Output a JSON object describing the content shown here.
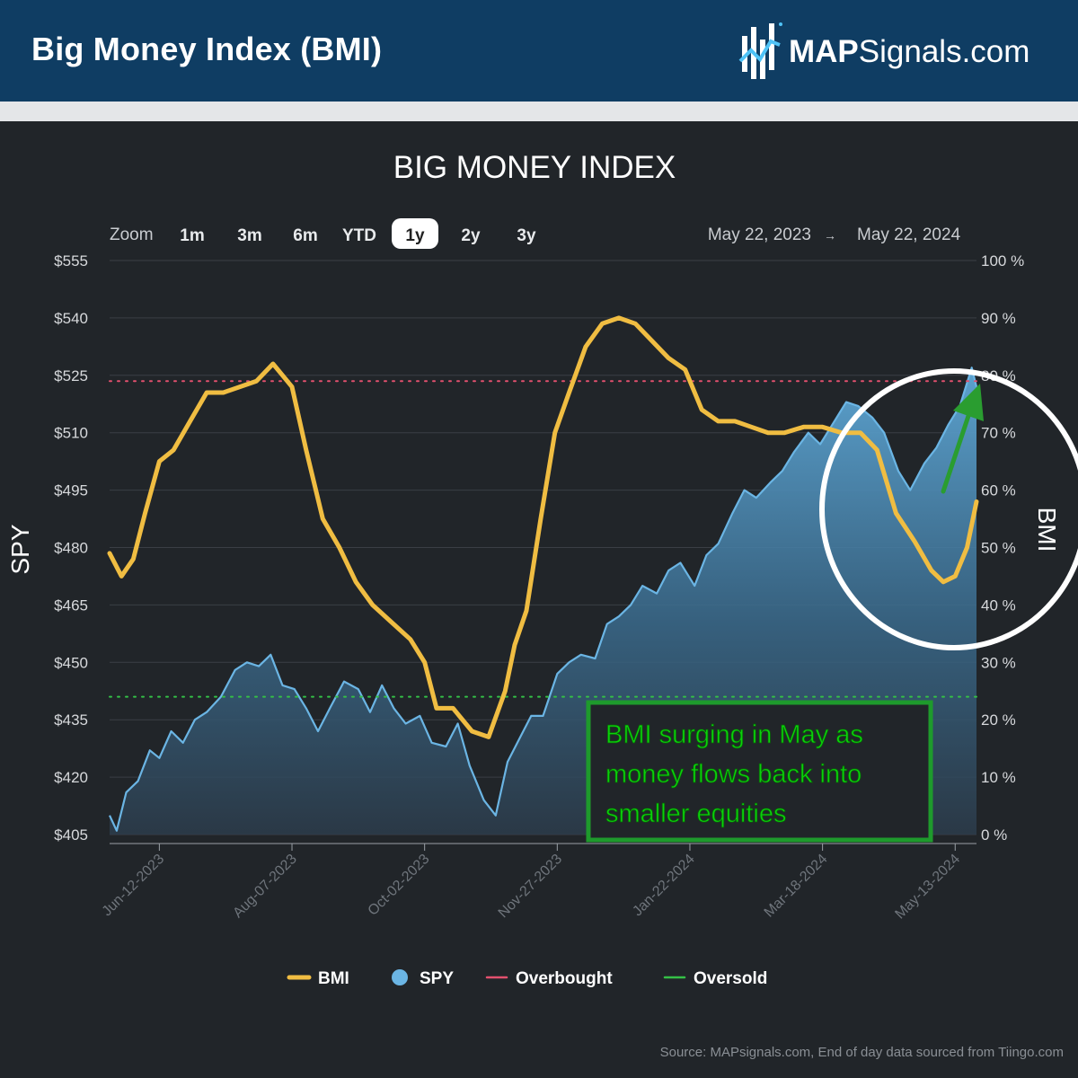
{
  "header": {
    "title": "Big Money Index (BMI)",
    "logo_strong": "MAP",
    "logo_rest": "Signals.com"
  },
  "zoom": {
    "label": "Zoom",
    "buttons": [
      "1m",
      "3m",
      "6m",
      "YTD",
      "1y",
      "2y",
      "3y"
    ],
    "selected": "1y",
    "range_from": "May 22, 2023",
    "arrow": "→",
    "range_to": "May 22, 2024"
  },
  "annotation": {
    "lines": [
      "BMI surging in May as",
      "money flows back into",
      "smaller equities"
    ],
    "color": "#0bd10b"
  },
  "source": "Source: MAPsignals.com, End of day data sourced from Tiingo.com",
  "colors": {
    "bmi": "#f0bd42",
    "spy": "#6bb5e4",
    "overbought": "#e2506e",
    "oversold": "#34c046",
    "background": "#212529"
  },
  "chart_data": {
    "type": "line",
    "title": "BIG MONEY INDEX",
    "y_left": {
      "label": "SPY",
      "range": [
        405,
        555
      ],
      "ticks": [
        "$555",
        "$540",
        "$525",
        "$510",
        "$495",
        "$480",
        "$465",
        "$450",
        "$435",
        "$420",
        "$405"
      ]
    },
    "y_right": {
      "label": "BMI",
      "range": [
        0,
        100
      ],
      "ticks": [
        "100 %",
        "90 %",
        "80 %",
        "70 %",
        "60 %",
        "50 %",
        "40 %",
        "30 %",
        "20 %",
        "10 %",
        "0 %"
      ]
    },
    "x_ticks": [
      "Jun-12-2023",
      "Aug-07-2023",
      "Oct-02-2023",
      "Nov-27-2023",
      "Jan-22-2024",
      "Mar-18-2024",
      "May-13-2024"
    ],
    "x_range": [
      "2023-05-22",
      "2024-05-22"
    ],
    "grid": "horizontal",
    "legend_position": "bottom",
    "thresholds": [
      {
        "name": "Overbought",
        "axis": "BMI",
        "value": 79
      },
      {
        "name": "Oversold",
        "axis": "BMI",
        "value": 24
      }
    ],
    "series": [
      {
        "name": "BMI",
        "axis": "right",
        "x": [
          "2023-05-22",
          "2023-05-27",
          "2023-06-01",
          "2023-06-06",
          "2023-06-12",
          "2023-06-18",
          "2023-06-25",
          "2023-07-02",
          "2023-07-09",
          "2023-07-16",
          "2023-07-23",
          "2023-07-30",
          "2023-08-03",
          "2023-08-07",
          "2023-08-13",
          "2023-08-20",
          "2023-08-27",
          "2023-09-03",
          "2023-09-10",
          "2023-09-18",
          "2023-09-26",
          "2023-10-02",
          "2023-10-07",
          "2023-10-14",
          "2023-10-22",
          "2023-10-29",
          "2023-11-05",
          "2023-11-09",
          "2023-11-14",
          "2023-11-20",
          "2023-11-26",
          "2023-12-02",
          "2023-12-09",
          "2023-12-16",
          "2023-12-23",
          "2023-12-30",
          "2024-01-06",
          "2024-01-13",
          "2024-01-20",
          "2024-01-27",
          "2024-02-03",
          "2024-02-10",
          "2024-02-17",
          "2024-02-24",
          "2024-03-02",
          "2024-03-10",
          "2024-03-18",
          "2024-03-26",
          "2024-04-03",
          "2024-04-10",
          "2024-04-18",
          "2024-04-26",
          "2024-05-03",
          "2024-05-08",
          "2024-05-13",
          "2024-05-18",
          "2024-05-22"
        ],
        "values": [
          49,
          45,
          48,
          56,
          65,
          67,
          72,
          77,
          77,
          78,
          79,
          82,
          80,
          78,
          67,
          55,
          50,
          44,
          40,
          37,
          34,
          30,
          22,
          22,
          18,
          17,
          25,
          33,
          39,
          55,
          70,
          77,
          85,
          89,
          90,
          89,
          86,
          83,
          81,
          74,
          72,
          72,
          71,
          70,
          70,
          71,
          71,
          70,
          70,
          67,
          56,
          51,
          46,
          44,
          45,
          50,
          58
        ]
      },
      {
        "name": "SPY",
        "axis": "left",
        "x": [
          "2023-05-22",
          "2023-05-25",
          "2023-05-29",
          "2023-06-03",
          "2023-06-08",
          "2023-06-12",
          "2023-06-17",
          "2023-06-22",
          "2023-06-27",
          "2023-07-02",
          "2023-07-08",
          "2023-07-14",
          "2023-07-19",
          "2023-07-24",
          "2023-07-29",
          "2023-08-03",
          "2023-08-08",
          "2023-08-13",
          "2023-08-18",
          "2023-08-23",
          "2023-08-29",
          "2023-09-04",
          "2023-09-09",
          "2023-09-14",
          "2023-09-19",
          "2023-09-24",
          "2023-09-30",
          "2023-10-05",
          "2023-10-11",
          "2023-10-16",
          "2023-10-21",
          "2023-10-27",
          "2023-11-01",
          "2023-11-06",
          "2023-11-11",
          "2023-11-16",
          "2023-11-21",
          "2023-11-27",
          "2023-12-02",
          "2023-12-07",
          "2023-12-13",
          "2023-12-18",
          "2023-12-23",
          "2023-12-28",
          "2024-01-02",
          "2024-01-08",
          "2024-01-13",
          "2024-01-18",
          "2024-01-24",
          "2024-01-29",
          "2024-02-03",
          "2024-02-09",
          "2024-02-14",
          "2024-02-19",
          "2024-02-25",
          "2024-03-01",
          "2024-03-06",
          "2024-03-12",
          "2024-03-17",
          "2024-03-22",
          "2024-03-28",
          "2024-04-02",
          "2024-04-08",
          "2024-04-13",
          "2024-04-19",
          "2024-04-24",
          "2024-04-30",
          "2024-05-05",
          "2024-05-10",
          "2024-05-15",
          "2024-05-20",
          "2024-05-22"
        ],
        "values": [
          410,
          406,
          416,
          419,
          427,
          425,
          432,
          429,
          435,
          437,
          441,
          448,
          450,
          449,
          452,
          444,
          443,
          438,
          432,
          438,
          445,
          443,
          437,
          444,
          438,
          434,
          436,
          429,
          428,
          434,
          423,
          414,
          410,
          424,
          430,
          436,
          436,
          447,
          450,
          452,
          451,
          460,
          462,
          465,
          470,
          468,
          474,
          476,
          470,
          478,
          481,
          489,
          495,
          493,
          497,
          500,
          505,
          510,
          507,
          512,
          518,
          517,
          514,
          510,
          500,
          495,
          502,
          506,
          512,
          517,
          527,
          522
        ]
      }
    ]
  }
}
